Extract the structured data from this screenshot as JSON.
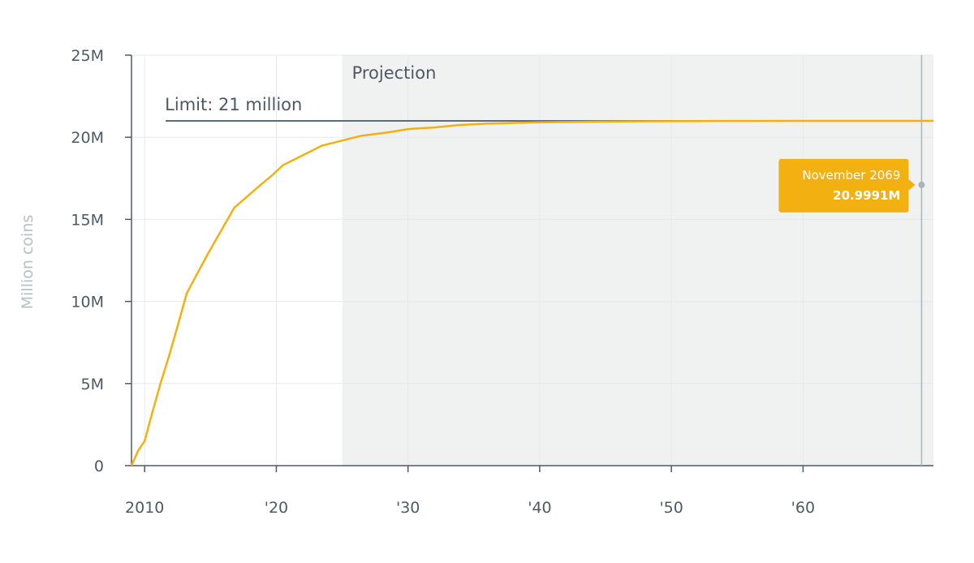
{
  "chart_data": {
    "type": "line",
    "ylabel": "Million coins",
    "ylim": [
      0,
      25
    ],
    "y_ticks": [
      {
        "value": 0,
        "label": "0"
      },
      {
        "value": 5,
        "label": "5M"
      },
      {
        "value": 10,
        "label": "10M"
      },
      {
        "value": 15,
        "label": "15M"
      },
      {
        "value": 20,
        "label": "20M"
      },
      {
        "value": 25,
        "label": "25M"
      }
    ],
    "xlim": [
      2009.0,
      2069.9
    ],
    "x_ticks": [
      {
        "value": 2010,
        "label": "2010"
      },
      {
        "value": 2020,
        "label": "'20"
      },
      {
        "value": 2030,
        "label": "'30"
      },
      {
        "value": 2040,
        "label": "'40"
      },
      {
        "value": 2050,
        "label": "'50"
      },
      {
        "value": 2060,
        "label": "'60"
      }
    ],
    "grid": true,
    "projection": {
      "start": 2025.0,
      "label": "Projection"
    },
    "limit": {
      "value": 21,
      "label": "Limit: 21 million",
      "start": 2011.6
    },
    "series": [
      {
        "color": "#f2b111",
        "x": [
          2009.0,
          2009.5,
          2010.0,
          2010.6,
          2011.2,
          2011.9,
          2012.5,
          2013.2,
          2014.0,
          2014.8,
          2015.8,
          2016.8,
          2017.8,
          2018.8,
          2019.7,
          2020.5,
          2021.5,
          2022.5,
          2023.5,
          2024.5,
          2025.5,
          2026.5,
          2027.5,
          2028.5,
          2030.0,
          2032.0,
          2034.0,
          2036.0,
          2040.0,
          2044.0,
          2048.0,
          2052.0,
          2056.0,
          2060.0,
          2064.0,
          2069.9
        ],
        "y": [
          0.0,
          0.9,
          1.5,
          3.3,
          5.0,
          6.8,
          8.5,
          10.5,
          11.7,
          12.9,
          14.3,
          15.7,
          16.4,
          17.1,
          17.7,
          18.3,
          18.7,
          19.1,
          19.5,
          19.7,
          19.9,
          20.1,
          20.2,
          20.3,
          20.5,
          20.6,
          20.75,
          20.83,
          20.91,
          20.95,
          20.975,
          20.988,
          20.994,
          20.997,
          20.999,
          20.9991
        ]
      }
    ],
    "tooltip": {
      "date": "November 2069",
      "value": "20.9991M",
      "x": 2069.0,
      "y": 17.1
    }
  },
  "colors": {
    "axis": "#4e5a63",
    "grid": "#e6e9eb",
    "projection_bg": "#f0f1f1",
    "limit_line": "#5f6b74",
    "tooltip_bg": "#f2b111",
    "crosshair": "#a9b4bb"
  }
}
